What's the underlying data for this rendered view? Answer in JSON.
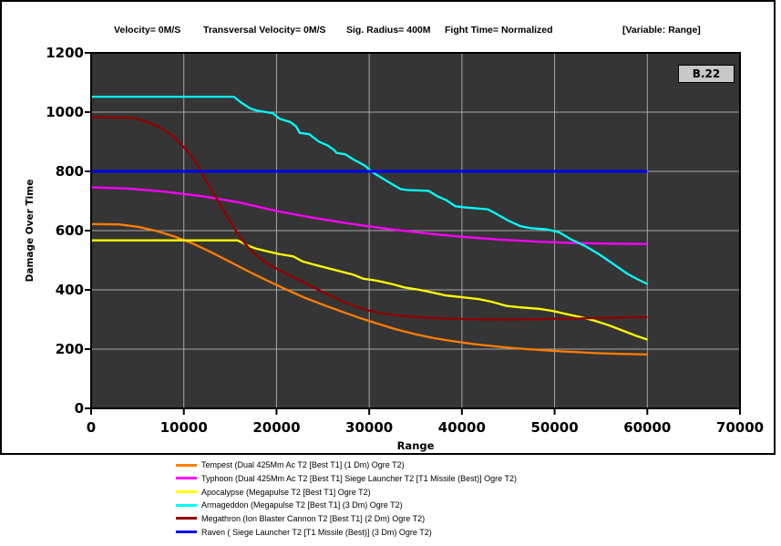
{
  "header": {
    "items": [
      {
        "label": "Velocity= 0M/S"
      },
      {
        "label": "Transversal Velocity= 0M/S"
      },
      {
        "label": "Sig. Radius= 400M"
      },
      {
        "label": "Fight Time= Normalized"
      },
      {
        "label": "[Variable: Range]"
      }
    ]
  },
  "annotation": {
    "label": "B.22"
  },
  "chart_data": {
    "type": "line",
    "title": "",
    "xlabel": "Range",
    "ylabel": "Damage Over Time",
    "xlim": [
      0,
      70000
    ],
    "ylim": [
      0,
      1200
    ],
    "x_ticks": [
      0,
      10000,
      20000,
      30000,
      40000,
      50000,
      60000,
      70000
    ],
    "y_ticks": [
      0,
      200,
      400,
      600,
      800,
      1000,
      1200
    ],
    "grid": true,
    "legend_position": "bottom",
    "plot_background": "#353535",
    "gridline_color": "#a6a6a6",
    "axis_color": "#000000",
    "series": [
      {
        "id": "tempest",
        "name": "Tempest (Dual 425Mm Ac T2 [Best T1] (1 Dm) Ogre T2)",
        "color": "#ff7d00",
        "points": [
          [
            0,
            622
          ],
          [
            3000,
            621
          ],
          [
            5000,
            613
          ],
          [
            7000,
            599
          ],
          [
            9000,
            580
          ],
          [
            11000,
            556
          ],
          [
            13000,
            526
          ],
          [
            15000,
            494
          ],
          [
            17000,
            462
          ],
          [
            19000,
            431
          ],
          [
            21000,
            402
          ],
          [
            23000,
            374
          ],
          [
            25000,
            350
          ],
          [
            27000,
            327
          ],
          [
            29000,
            305
          ],
          [
            31000,
            285
          ],
          [
            33000,
            266
          ],
          [
            35000,
            250
          ],
          [
            37000,
            237
          ],
          [
            39000,
            227
          ],
          [
            41000,
            218
          ],
          [
            43000,
            211
          ],
          [
            45000,
            205
          ],
          [
            47000,
            200
          ],
          [
            49000,
            196
          ],
          [
            51000,
            192
          ],
          [
            53000,
            189
          ],
          [
            55000,
            186
          ],
          [
            57000,
            184
          ],
          [
            60000,
            182
          ]
        ]
      },
      {
        "id": "typhoon",
        "name": "Typhoon (Dual 425Mm Ac T2 [Best T1] Siege Launcher T2 [T1 Missile (Best)] Ogre T2)",
        "color": "#ff00ff",
        "points": [
          [
            0,
            746
          ],
          [
            4000,
            742
          ],
          [
            8000,
            731
          ],
          [
            12000,
            716
          ],
          [
            16000,
            695
          ],
          [
            20000,
            666
          ],
          [
            24000,
            643
          ],
          [
            28000,
            623
          ],
          [
            32000,
            606
          ],
          [
            36000,
            591
          ],
          [
            40000,
            579
          ],
          [
            44000,
            570
          ],
          [
            48000,
            563
          ],
          [
            52000,
            558
          ],
          [
            56000,
            556
          ],
          [
            60000,
            555
          ]
        ]
      },
      {
        "id": "apocalypse",
        "name": "Apocalypse (Megapulse T2 [Best T1] Ogre T2)",
        "color": "#ffff00",
        "points": [
          [
            0,
            567
          ],
          [
            15800,
            567
          ],
          [
            16800,
            551
          ],
          [
            17800,
            539
          ],
          [
            19000,
            530
          ],
          [
            20300,
            521
          ],
          [
            21800,
            513
          ],
          [
            22800,
            496
          ],
          [
            24300,
            483
          ],
          [
            25800,
            471
          ],
          [
            26800,
            463
          ],
          [
            28300,
            451
          ],
          [
            29300,
            438
          ],
          [
            30800,
            431
          ],
          [
            32300,
            421
          ],
          [
            33800,
            408
          ],
          [
            35300,
            401
          ],
          [
            36800,
            391
          ],
          [
            38300,
            381
          ],
          [
            40300,
            374
          ],
          [
            41800,
            369
          ],
          [
            43300,
            359
          ],
          [
            44800,
            346
          ],
          [
            46300,
            341
          ],
          [
            48300,
            336
          ],
          [
            49800,
            329
          ],
          [
            51300,
            318
          ],
          [
            52800,
            308
          ],
          [
            54300,
            296
          ],
          [
            55800,
            281
          ],
          [
            57300,
            263
          ],
          [
            58800,
            245
          ],
          [
            60000,
            232
          ]
        ]
      },
      {
        "id": "armageddon",
        "name": "Armageddon (Megapulse T2 [Best T1] (3 Dm) Ogre T2)",
        "color": "#00ffff",
        "points": [
          [
            0,
            1052
          ],
          [
            15400,
            1052
          ],
          [
            16200,
            1032
          ],
          [
            17200,
            1012
          ],
          [
            17900,
            1005
          ],
          [
            19600,
            996
          ],
          [
            20300,
            978
          ],
          [
            21500,
            966
          ],
          [
            22100,
            952
          ],
          [
            22500,
            930
          ],
          [
            23500,
            926
          ],
          [
            24600,
            900
          ],
          [
            25500,
            888
          ],
          [
            26200,
            872
          ],
          [
            26500,
            862
          ],
          [
            27400,
            858
          ],
          [
            28300,
            840
          ],
          [
            29500,
            820
          ],
          [
            30300,
            798
          ],
          [
            31500,
            775
          ],
          [
            32300,
            760
          ],
          [
            33400,
            740
          ],
          [
            34200,
            737
          ],
          [
            36400,
            734
          ],
          [
            37400,
            715
          ],
          [
            38300,
            703
          ],
          [
            39300,
            682
          ],
          [
            40500,
            678
          ],
          [
            42800,
            672
          ],
          [
            43800,
            655
          ],
          [
            45000,
            634
          ],
          [
            46300,
            615
          ],
          [
            47500,
            608
          ],
          [
            49200,
            604
          ],
          [
            50500,
            594
          ],
          [
            51800,
            570
          ],
          [
            53300,
            548
          ],
          [
            54800,
            520
          ],
          [
            56300,
            488
          ],
          [
            57800,
            455
          ],
          [
            59000,
            435
          ],
          [
            60000,
            420
          ]
        ]
      },
      {
        "id": "megathron",
        "name": "Megathron (Ion Blaster Cannon T2 [Best T1] (2 Dm) Ogre T2)",
        "color": "#8f0000",
        "points": [
          [
            0,
            983
          ],
          [
            4500,
            981
          ],
          [
            6000,
            968
          ],
          [
            7500,
            947
          ],
          [
            9000,
            915
          ],
          [
            10500,
            865
          ],
          [
            11500,
            820
          ],
          [
            12500,
            762
          ],
          [
            13500,
            710
          ],
          [
            14500,
            658
          ],
          [
            15500,
            605
          ],
          [
            16500,
            560
          ],
          [
            17500,
            525
          ],
          [
            18500,
            500
          ],
          [
            19500,
            480
          ],
          [
            21000,
            455
          ],
          [
            22500,
            432
          ],
          [
            24000,
            408
          ],
          [
            25500,
            385
          ],
          [
            27000,
            362
          ],
          [
            28500,
            345
          ],
          [
            30000,
            330
          ],
          [
            31500,
            320
          ],
          [
            33500,
            312
          ],
          [
            35500,
            307
          ],
          [
            38000,
            303
          ],
          [
            41000,
            301
          ],
          [
            44000,
            300
          ],
          [
            48000,
            301
          ],
          [
            52000,
            303
          ],
          [
            56000,
            306
          ],
          [
            60000,
            308
          ]
        ]
      },
      {
        "id": "raven",
        "name": "Raven ( Siege Launcher T2 [T1 Missile (Best)] (3 Dm) Ogre T2)",
        "color": "#0000ee",
        "points": [
          [
            0,
            800
          ],
          [
            60000,
            800
          ]
        ]
      }
    ]
  }
}
